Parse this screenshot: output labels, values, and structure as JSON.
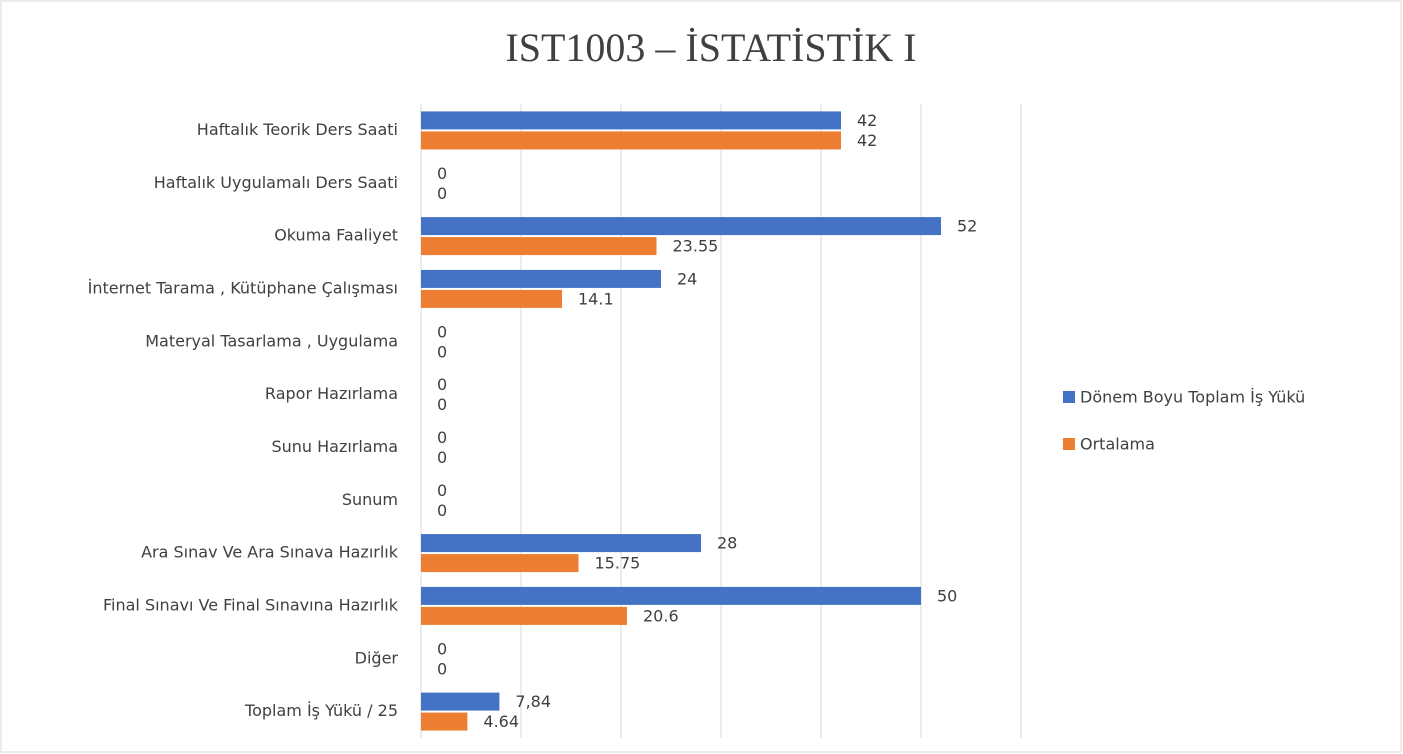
{
  "chart_data": {
    "type": "bar",
    "orientation": "horizontal",
    "title": "IST1003 – İSTATİSTİK I",
    "categories": [
      "Haftalık Teorik Ders Saati",
      "Haftalık Uygulamalı Ders Saati",
      "Okuma Faaliyet",
      "İnternet Tarama , Kütüphane Çalışması",
      "Materyal Tasarlama , Uygulama",
      "Rapor Hazırlama",
      "Sunu Hazırlama",
      "Sunum",
      "Ara Sınav Ve Ara Sınava Hazırlık",
      "Final Sınavı Ve Final Sınavına Hazırlık",
      "Diğer",
      "Toplam İş Yükü / 25"
    ],
    "series": [
      {
        "name": "Dönem Boyu Toplam İş Yükü",
        "color": "#4472c4",
        "values": [
          42,
          0,
          52,
          24,
          0,
          0,
          0,
          0,
          28,
          50,
          0,
          7.84
        ],
        "value_labels": [
          "42",
          "0",
          "52",
          "24",
          "0",
          "0",
          "0",
          "0",
          "28",
          "50",
          "0",
          "7,84"
        ]
      },
      {
        "name": "Ortalama",
        "color": "#ed7d31",
        "values": [
          42,
          0,
          23.55,
          14.1,
          0,
          0,
          0,
          0,
          15.75,
          20.6,
          0,
          4.64
        ]
      }
    ],
    "xlim": [
      0,
      60
    ],
    "xticks": [
      0,
      10,
      20,
      30,
      40,
      50,
      60
    ],
    "grid": true,
    "legend": "right"
  }
}
